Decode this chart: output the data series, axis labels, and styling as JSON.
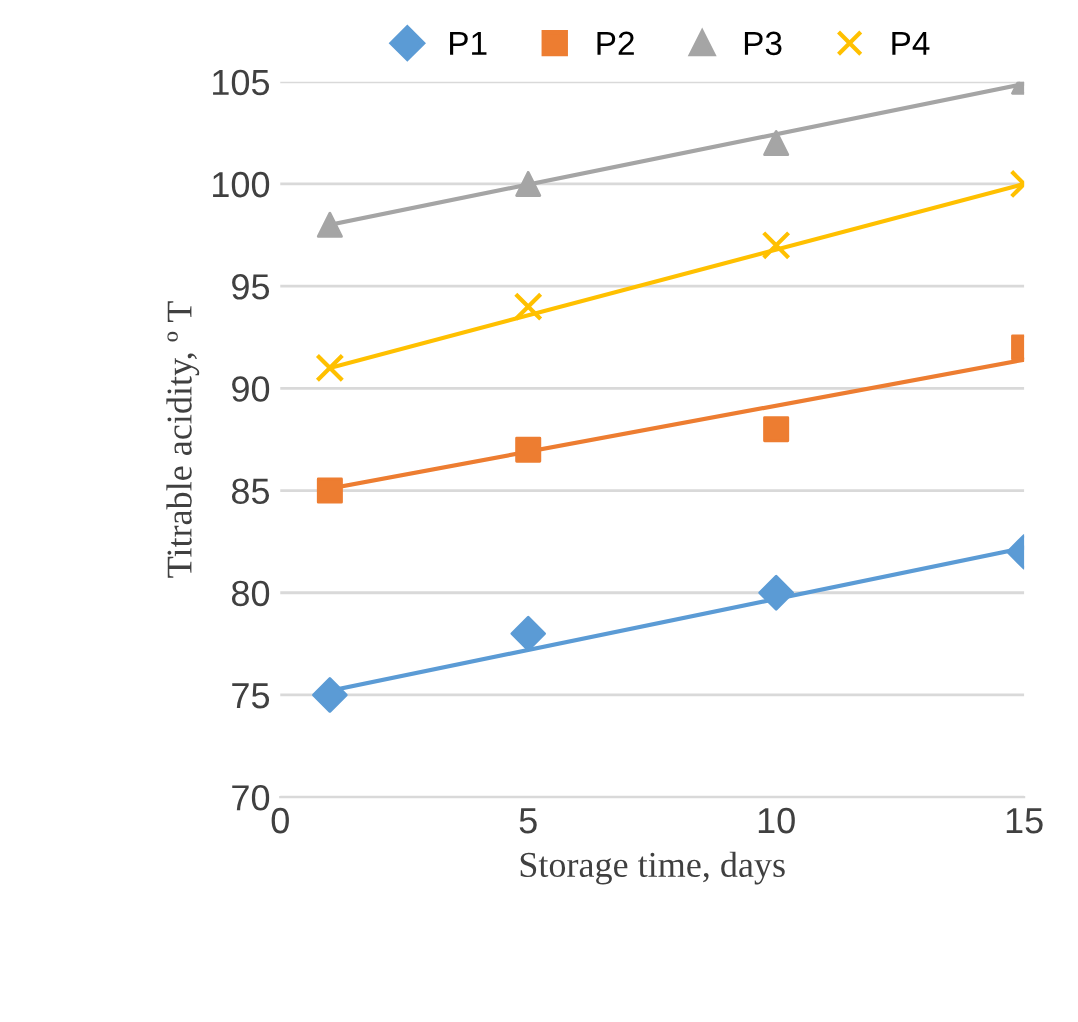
{
  "chart_data": {
    "type": "scatter",
    "xlabel": "Storage time, days",
    "ylabel": "Titrable acidity, º T",
    "xlim": [
      0,
      15
    ],
    "xticks": [
      0,
      5,
      10,
      15
    ],
    "ylim": [
      70,
      105
    ],
    "yticks": [
      70,
      75,
      80,
      85,
      90,
      95,
      100,
      105
    ],
    "grid": "y",
    "legend": "top",
    "series": [
      {
        "name": "P1",
        "color": "#5b9bd5",
        "marker": "diamond",
        "x": [
          1,
          5,
          10,
          15
        ],
        "values": [
          75,
          78,
          80,
          82
        ]
      },
      {
        "name": "P2",
        "color": "#ed7d31",
        "marker": "square",
        "x": [
          1,
          5,
          10,
          15
        ],
        "values": [
          85,
          87,
          88,
          92
        ]
      },
      {
        "name": "P3",
        "color": "#a5a5a5",
        "marker": "triangle",
        "x": [
          1,
          5,
          10,
          15
        ],
        "values": [
          98,
          100,
          102,
          105
        ]
      },
      {
        "name": "P4",
        "color": "#ffc000",
        "marker": "cross",
        "x": [
          1,
          5,
          10,
          15
        ],
        "values": [
          91,
          94,
          97,
          100
        ]
      },
      {
        "type": "line",
        "color": "#5b9bd5",
        "x": [
          1,
          15
        ],
        "values": [
          75.2,
          82.2
        ]
      },
      {
        "type": "line",
        "color": "#ed7d31",
        "x": [
          1,
          15
        ],
        "values": [
          85.1,
          91.4
        ]
      },
      {
        "type": "line",
        "color": "#a5a5a5",
        "x": [
          1,
          15
        ],
        "values": [
          98,
          104.9
        ]
      },
      {
        "type": "line",
        "color": "#ffc000",
        "x": [
          1,
          15
        ],
        "values": [
          91,
          100
        ]
      }
    ]
  }
}
